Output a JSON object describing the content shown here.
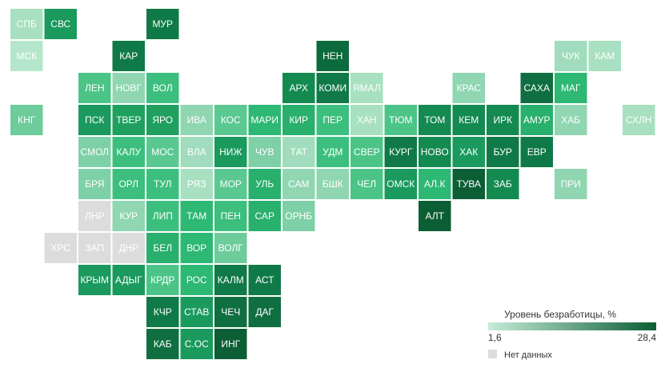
{
  "map": {
    "rows": [
      [
        {
          "label": "СПБ",
          "color": "#a8e0c2"
        },
        {
          "label": "СВС",
          "color": "#1a9a5c"
        },
        null,
        null,
        {
          "label": "МУР",
          "color": "#0f7a47"
        }
      ],
      [
        {
          "label": "МСК",
          "color": "#b5e6cb"
        },
        null,
        null,
        {
          "label": "КАР",
          "color": "#0f7a47"
        },
        null,
        null,
        null,
        null,
        null,
        {
          "label": "НЕН",
          "color": "#0c6b3c"
        },
        null,
        null,
        null,
        null,
        null,
        null,
        {
          "label": "ЧУК",
          "color": "#a0dcbd"
        },
        {
          "label": "КАМ",
          "color": "#a8e0c2"
        }
      ],
      [
        null,
        null,
        {
          "label": "ЛЕН",
          "color": "#4cc488"
        },
        {
          "label": "НОВГ",
          "color": "#8fd6b1"
        },
        {
          "label": "ВОЛ",
          "color": "#3cbf7e"
        },
        null,
        null,
        null,
        {
          "label": "АРХ",
          "color": "#138a50"
        },
        {
          "label": "КОМИ",
          "color": "#0f7a47"
        },
        {
          "label": "ЯМАЛ",
          "color": "#a8e0c2"
        },
        null,
        null,
        {
          "label": "КРАС",
          "color": "#8fd6b1"
        },
        null,
        {
          "label": "САХА",
          "color": "#0f6f40"
        },
        {
          "label": "МАГ",
          "color": "#2db873"
        }
      ],
      [
        {
          "label": "КНГ",
          "color": "#6dcb9c"
        },
        null,
        {
          "label": "ПСК",
          "color": "#1a9a5c"
        },
        {
          "label": "ТВЕР",
          "color": "#1fa05f"
        },
        {
          "label": "ЯРО",
          "color": "#1fa05f"
        },
        {
          "label": "ИВА",
          "color": "#8fd6b1"
        },
        {
          "label": "КОС",
          "color": "#5ac891"
        },
        {
          "label": "МАРИ",
          "color": "#2db873"
        },
        {
          "label": "КИР",
          "color": "#28b06c"
        },
        {
          "label": "ПЕР",
          "color": "#3cbf7e"
        },
        {
          "label": "ХАН",
          "color": "#a8e0c2"
        },
        {
          "label": "ТЮМ",
          "color": "#4cc488"
        },
        {
          "label": "ТОМ",
          "color": "#138a50"
        },
        {
          "label": "КЕМ",
          "color": "#138a50"
        },
        {
          "label": "ИРК",
          "color": "#138a50"
        },
        {
          "label": "АМУР",
          "color": "#28b06c"
        },
        {
          "label": "ХАБ",
          "color": "#8fd6b1"
        },
        null,
        {
          "label": "СХЛН",
          "color": "#a8e0c2"
        }
      ],
      [
        null,
        null,
        {
          "label": "СМОЛ",
          "color": "#7ed0a6"
        },
        {
          "label": "КАЛУ",
          "color": "#3cbf7e"
        },
        {
          "label": "МОС",
          "color": "#5ac891"
        },
        {
          "label": "ВЛА",
          "color": "#a0dcbd"
        },
        {
          "label": "НИЖ",
          "color": "#1a9a5c"
        },
        {
          "label": "ЧУВ",
          "color": "#7ed0a6"
        },
        {
          "label": "ТАТ",
          "color": "#a0dcbd"
        },
        {
          "label": "УДМ",
          "color": "#3cbf7e"
        },
        {
          "label": "СВЕР",
          "color": "#4cc488"
        },
        {
          "label": "КУРГ",
          "color": "#0f7a47"
        },
        {
          "label": "НОВО",
          "color": "#138a50"
        },
        {
          "label": "ХАК",
          "color": "#1a9a5c"
        },
        {
          "label": "БУР",
          "color": "#0f7a47"
        },
        {
          "label": "ЕВР",
          "color": "#0f7a47"
        }
      ],
      [
        null,
        null,
        {
          "label": "БРЯ",
          "color": "#7ed0a6"
        },
        {
          "label": "ОРЛ",
          "color": "#3cbf7e"
        },
        {
          "label": "ТУЛ",
          "color": "#3cbf7e"
        },
        {
          "label": "РЯЗ",
          "color": "#a8e0c2"
        },
        {
          "label": "МОР",
          "color": "#5ac891"
        },
        {
          "label": "УЛЬ",
          "color": "#28b06c"
        },
        {
          "label": "САМ",
          "color": "#8fd6b1"
        },
        {
          "label": "БШК",
          "color": "#8fd6b1"
        },
        {
          "label": "ЧЕЛ",
          "color": "#4cc488"
        },
        {
          "label": "ОМСК",
          "color": "#1a9a5c"
        },
        {
          "label": "АЛ.К",
          "color": "#2db873"
        },
        {
          "label": "ТУВА",
          "color": "#0c5e35"
        },
        {
          "label": "ЗАБ",
          "color": "#138a50"
        },
        null,
        {
          "label": "ПРИ",
          "color": "#8fd6b1"
        }
      ],
      [
        null,
        null,
        {
          "label": "ЛНР",
          "color": "#dcdcdc"
        },
        {
          "label": "КУР",
          "color": "#8fd6b1"
        },
        {
          "label": "ЛИП",
          "color": "#3cbf7e"
        },
        {
          "label": "ТАМ",
          "color": "#2db873"
        },
        {
          "label": "ПЕН",
          "color": "#3cbf7e"
        },
        {
          "label": "САР",
          "color": "#28b06c"
        },
        {
          "label": "ОРНБ",
          "color": "#7ed0a6"
        },
        null,
        null,
        null,
        {
          "label": "АЛТ",
          "color": "#0c5e35"
        }
      ],
      [
        null,
        {
          "label": "ХРС",
          "color": "#dcdcdc"
        },
        {
          "label": "ЗАП",
          "color": "#dcdcdc"
        },
        {
          "label": "ДНР",
          "color": "#dcdcdc"
        },
        {
          "label": "БЕЛ",
          "color": "#28b06c"
        },
        {
          "label": "ВОР",
          "color": "#2db873"
        },
        {
          "label": "ВОЛГ",
          "color": "#6dcb9c"
        }
      ],
      [
        null,
        null,
        {
          "label": "КРЫМ",
          "color": "#1a9a5c"
        },
        {
          "label": "АДЫГ",
          "color": "#1a9a5c"
        },
        {
          "label": "КРДР",
          "color": "#4cc488"
        },
        {
          "label": "РОС",
          "color": "#2db873"
        },
        {
          "label": "КАЛМ",
          "color": "#0f7a47"
        },
        {
          "label": "АСТ",
          "color": "#0f7a47"
        }
      ],
      [
        null,
        null,
        null,
        null,
        {
          "label": "КЧР",
          "color": "#0f7a47"
        },
        {
          "label": "СТАВ",
          "color": "#1a9a5c"
        },
        {
          "label": "ЧЕЧ",
          "color": "#0f6f40"
        },
        {
          "label": "ДАГ",
          "color": "#0f6f40"
        }
      ],
      [
        null,
        null,
        null,
        null,
        {
          "label": "КАБ",
          "color": "#0f6f40"
        },
        {
          "label": "С.ОС",
          "color": "#1a9a5c"
        },
        {
          "label": "ИНГ",
          "color": "#0c5e35"
        }
      ]
    ]
  },
  "legend": {
    "title": "Уровень безработицы, %",
    "min": {
      "value": 1.6,
      "label": "1,6"
    },
    "max": {
      "value": 28.4,
      "label": "28,4"
    },
    "low_color": "#c5ecd8",
    "high_color": "#0c5e35",
    "nodata_label": "Нет данных",
    "nodata_color": "#dcdcdc"
  }
}
